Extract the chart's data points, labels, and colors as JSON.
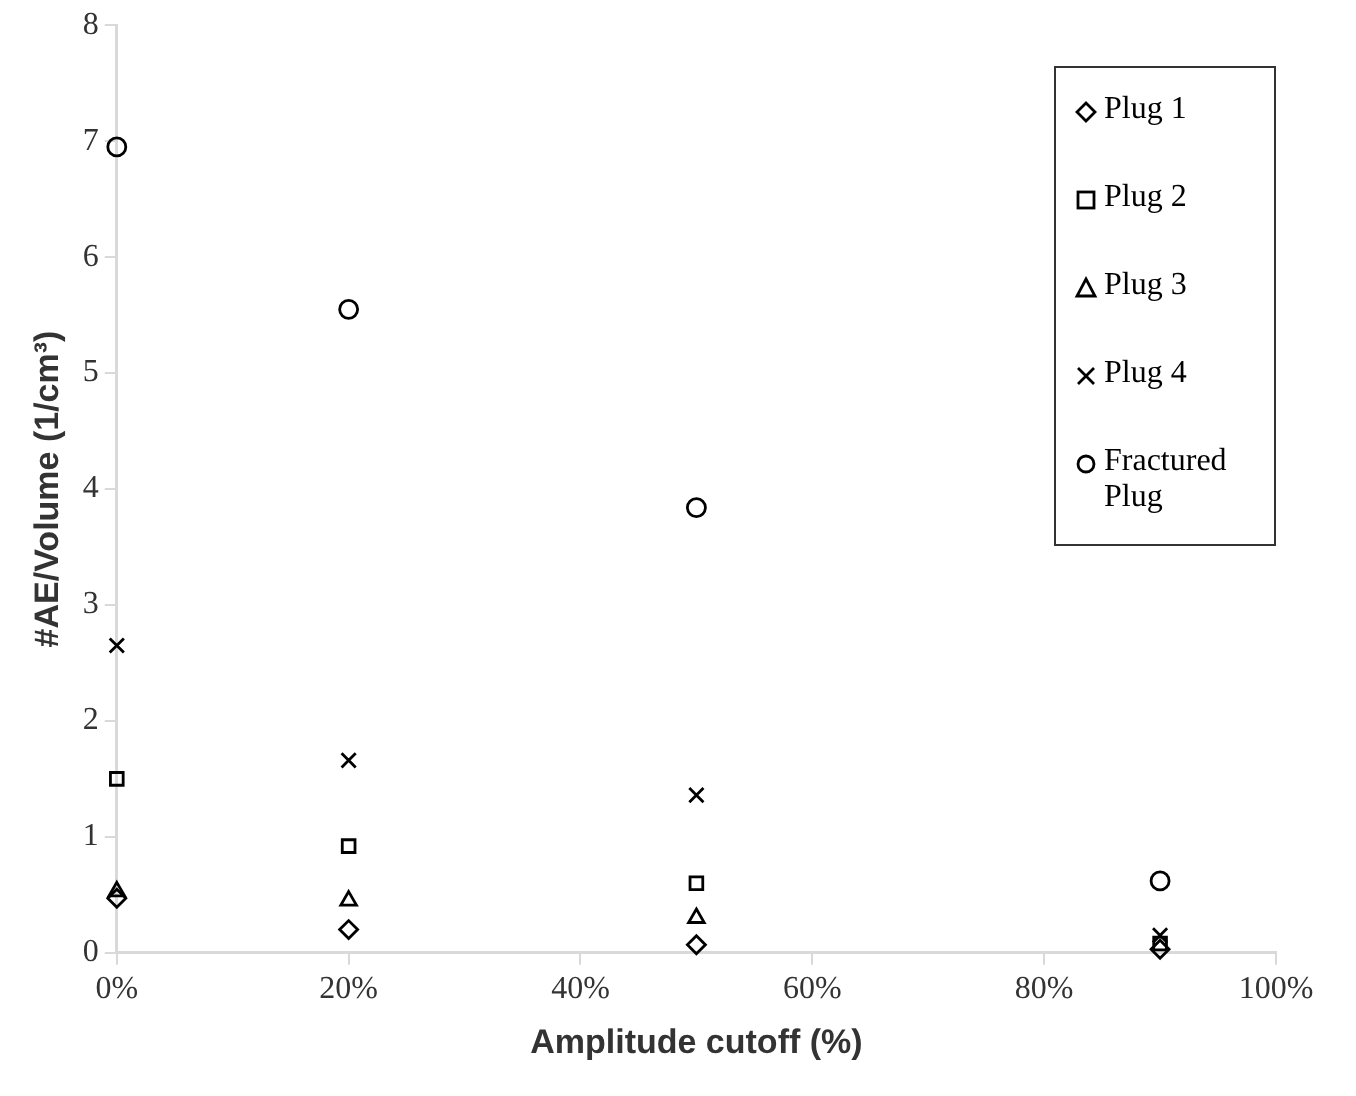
{
  "chart_data": {
    "type": "scatter",
    "xlabel": "Amplitude cutoff (%)",
    "ylabel": "#AE/Volume (1/cm³)",
    "x": [
      0,
      20,
      50,
      90
    ],
    "series": [
      {
        "name": "Plug 1",
        "color": "#000000",
        "marker": "diamond",
        "values": [
          0.47,
          0.2,
          0.07,
          0.03
        ]
      },
      {
        "name": "Plug 2",
        "color": "#000000",
        "marker": "square",
        "values": [
          1.5,
          0.92,
          0.6,
          0.08
        ]
      },
      {
        "name": "Plug 3",
        "color": "#000000",
        "marker": "triangle",
        "values": [
          0.53,
          0.45,
          0.3,
          null
        ]
      },
      {
        "name": "Plug 4",
        "color": "#000000",
        "marker": "cross",
        "values": [
          2.65,
          1.66,
          1.36,
          0.15
        ]
      },
      {
        "name": "Fractured Plug",
        "color": "#000000",
        "marker": "circle",
        "values": [
          6.95,
          5.55,
          3.84,
          0.62
        ]
      }
    ],
    "xlim": [
      0,
      100
    ],
    "xticks": [
      {
        "value": 0,
        "label": "0%"
      },
      {
        "value": 20,
        "label": "20%"
      },
      {
        "value": 40,
        "label": "40%"
      },
      {
        "value": 60,
        "label": "60%"
      },
      {
        "value": 80,
        "label": "80%"
      },
      {
        "value": 100,
        "label": "100%"
      }
    ],
    "ylim": [
      0,
      8
    ],
    "yticks": [
      0,
      1,
      2,
      3,
      4,
      5,
      6,
      7,
      8
    ],
    "grid": false,
    "legend": "top right"
  }
}
